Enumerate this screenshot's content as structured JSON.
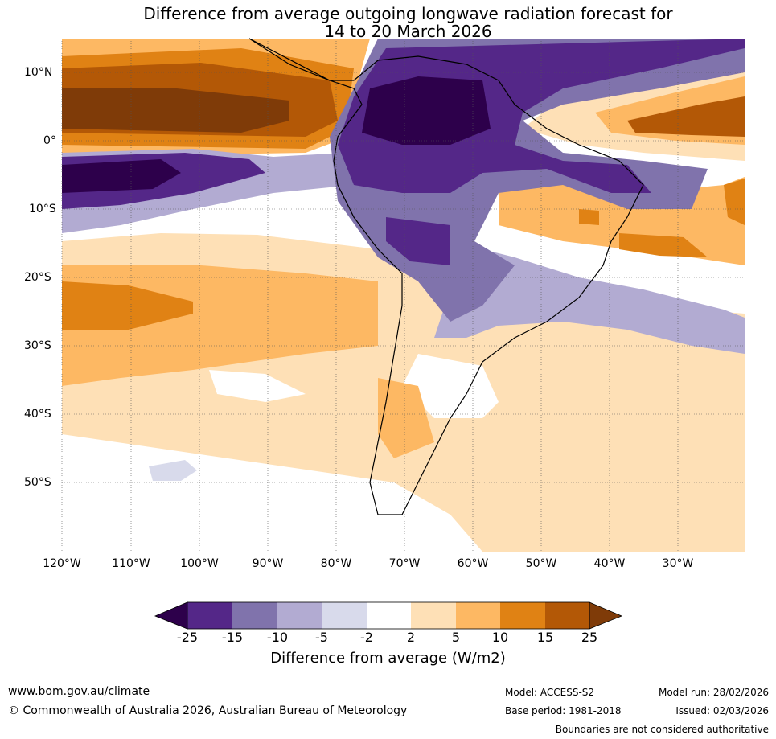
{
  "title": {
    "line1": "Difference from average outgoing longwave radiation forecast for",
    "line2": "14 to 20 March 2026"
  },
  "map": {
    "lat_labels": [
      "10°N",
      "0°",
      "10°S",
      "20°S",
      "30°S",
      "40°S",
      "50°S"
    ],
    "lon_labels": [
      "120°W",
      "110°W",
      "100°W",
      "90°W",
      "80°W",
      "70°W",
      "60°W",
      "50°W",
      "40°W",
      "30°W"
    ]
  },
  "colorbar": {
    "ticks": [
      "-25",
      "-15",
      "-10",
      "-5",
      "-2",
      "2",
      "5",
      "10",
      "15",
      "25"
    ],
    "colors": [
      "#2d004b",
      "#542788",
      "#8073ac",
      "#b2abd2",
      "#d8daeb",
      "#ffffff",
      "#fee0b6",
      "#fdb863",
      "#e08214",
      "#b35806",
      "#7f3b08"
    ],
    "label": "Difference from average (W/m2)"
  },
  "footer": {
    "url": "www.bom.gov.au/climate",
    "copyright": "© Commonwealth of Australia 2026, Australian Bureau of Meteorology",
    "model": "Model: ACCESS-S2",
    "model_run": "Model run: 28/02/2026",
    "base_period": "Base period: 1981-2018",
    "issued": "Issued: 02/03/2026",
    "disclaimer": "Boundaries are not considered authoritative"
  }
}
